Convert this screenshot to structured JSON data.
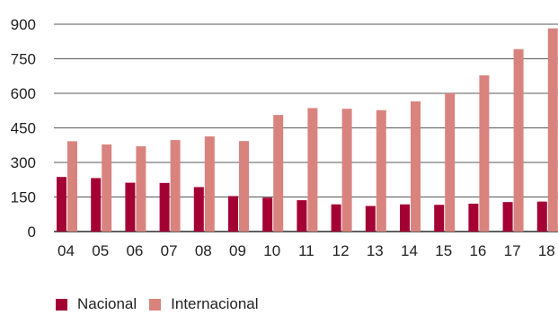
{
  "chart_data": {
    "type": "bar",
    "categories": [
      "04",
      "05",
      "06",
      "07",
      "08",
      "09",
      "10",
      "11",
      "12",
      "13",
      "14",
      "15",
      "16",
      "17",
      "18"
    ],
    "series": [
      {
        "name": "Nacional",
        "color": "#a50034",
        "values": [
          237,
          232,
          212,
          211,
          193,
          154,
          147,
          136,
          118,
          111,
          118,
          116,
          121,
          128,
          130
        ]
      },
      {
        "name": "Internacional",
        "color": "#d9837f",
        "values": [
          392,
          378,
          370,
          397,
          413,
          393,
          506,
          536,
          533,
          527,
          565,
          600,
          678,
          792,
          882
        ]
      }
    ],
    "yticks": [
      0,
      150,
      300,
      450,
      600,
      750,
      900
    ],
    "ylim": [
      0,
      900
    ],
    "grid": true,
    "legend": "bottom-left",
    "title": "",
    "xlabel": "",
    "ylabel": ""
  }
}
